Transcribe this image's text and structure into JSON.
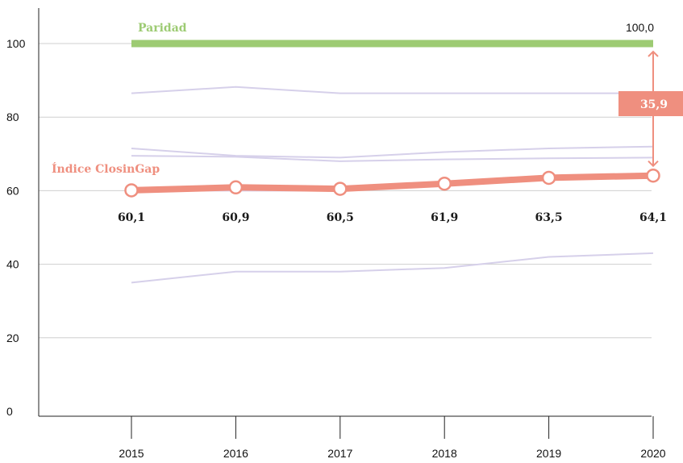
{
  "chart_data": {
    "type": "line",
    "title": "",
    "xlabel": "",
    "ylabel": "",
    "x": [
      2015,
      2016,
      2017,
      2018,
      2019,
      2020
    ],
    "ylim": [
      0,
      100
    ],
    "yticks": [
      0,
      20,
      40,
      60,
      80,
      100
    ],
    "grid": true,
    "series": [
      {
        "name": "Paridad",
        "values": [
          100,
          100,
          100,
          100,
          100,
          100
        ],
        "color": "#9dcb73",
        "end_label": "100,0"
      },
      {
        "name": "Índice ClosinGap",
        "values": [
          60.1,
          60.9,
          60.5,
          61.9,
          63.5,
          64.1
        ],
        "labels": [
          "60,1",
          "60,9",
          "60,5",
          "61,9",
          "63,5",
          "64,1"
        ],
        "color": "#ef8f7f"
      },
      {
        "values": [
          86.5,
          88.2,
          86.5,
          86.5,
          86.5,
          86.5
        ],
        "color": "#d6d0ea"
      },
      {
        "values": [
          71.5,
          69.5,
          69.0,
          70.5,
          71.5,
          72.0
        ],
        "color": "#d6d0ea"
      },
      {
        "values": [
          69.5,
          69.2,
          68.0,
          68.5,
          68.8,
          69.0
        ],
        "color": "#d6d0ea"
      },
      {
        "values": [
          60.0,
          60.0,
          60.0,
          62.5,
          63.5,
          64.0
        ],
        "color": "#d6d0ea"
      },
      {
        "values": [
          35.0,
          38.0,
          38.0,
          39.0,
          42.0,
          43.0
        ],
        "color": "#d6d0ea"
      }
    ],
    "gap": {
      "value": "35,9",
      "color": "#ef8f7f"
    }
  }
}
